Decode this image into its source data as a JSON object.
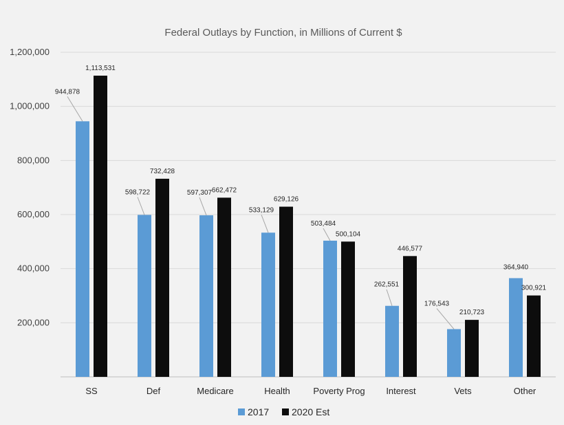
{
  "chart_data": {
    "type": "bar",
    "title": "Federal Outlays by Function, in Millions of Current $",
    "categories": [
      "SS",
      "Def",
      "Medicare",
      "Health",
      "Poverty Prog",
      "Interest",
      "Vets",
      "Other"
    ],
    "series": [
      {
        "name": "2017",
        "color": "#5b9bd5",
        "values": [
          944878,
          598722,
          597307,
          533129,
          503484,
          262551,
          176543,
          364940
        ],
        "labels": [
          "944,878",
          "598,722",
          "597,307",
          "533,129",
          "503,484",
          "262,551",
          "176,543",
          "364,940"
        ]
      },
      {
        "name": "2020 Est",
        "color": "#0d0d0d",
        "values": [
          1113531,
          732428,
          662472,
          629126,
          500104,
          446577,
          210723,
          300921
        ],
        "labels": [
          "1,113,531",
          "732,428",
          "662,472",
          "629,126",
          "500,104",
          "446,577",
          "210,723",
          "300,921"
        ]
      }
    ],
    "ylim": [
      0,
      1200000
    ],
    "yticks": [
      200000,
      400000,
      600000,
      800000,
      1000000,
      1200000
    ],
    "ytick_labels": [
      "200,000",
      "400,000",
      "600,000",
      "800,000",
      "1,000,000",
      "1,200,000"
    ],
    "grid": true,
    "legend_position": "bottom-center"
  }
}
